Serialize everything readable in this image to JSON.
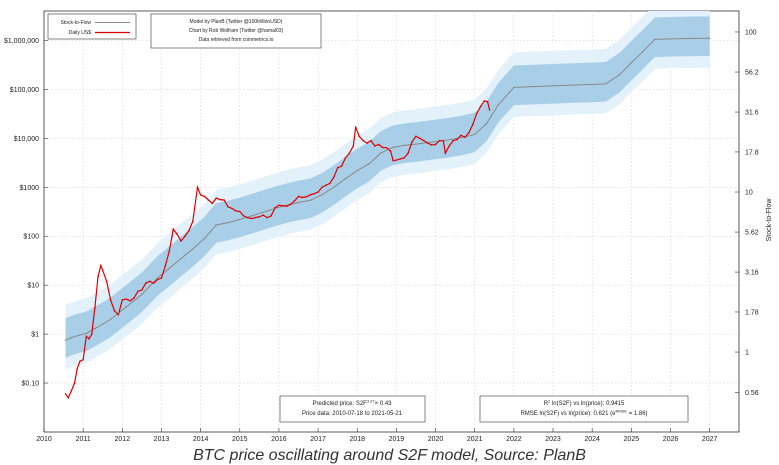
{
  "chart_data": {
    "type": "line",
    "title": "",
    "caption": "BTC price oscillating around S2F model, Source: PlanB",
    "xlabel": "",
    "ylabel": "",
    "y2label": "Stock-to-Flow",
    "x_ticks": [
      "2010",
      "2011",
      "2012",
      "2013",
      "2014",
      "2015",
      "2016",
      "2017",
      "2018",
      "2019",
      "2020",
      "2021",
      "2022",
      "2023",
      "2024",
      "2025",
      "2026",
      "2027"
    ],
    "y_ticks": [
      {
        "value": 0.1,
        "label": "$0.10"
      },
      {
        "value": 1,
        "label": "$1"
      },
      {
        "value": 10,
        "label": "$10"
      },
      {
        "value": 100,
        "label": "$100"
      },
      {
        "value": 1000,
        "label": "$1000"
      },
      {
        "value": 10000,
        "label": "$10,000"
      },
      {
        "value": 100000,
        "label": "$100,000"
      },
      {
        "value": 1000000,
        "label": "$1,000,000"
      }
    ],
    "y2_ticks": [
      {
        "value": 0.56,
        "label": "0.56"
      },
      {
        "value": 1,
        "label": "1"
      },
      {
        "value": 1.78,
        "label": "1.78"
      },
      {
        "value": 3.16,
        "label": "3.16"
      },
      {
        "value": 5.62,
        "label": "5.62"
      },
      {
        "value": 10,
        "label": "10"
      },
      {
        "value": 17.8,
        "label": "17.8"
      },
      {
        "value": 31.6,
        "label": "31.6"
      },
      {
        "value": 56.2,
        "label": "56.2"
      },
      {
        "value": 100,
        "label": "100"
      }
    ],
    "xlim": [
      2010.0,
      2027.75
    ],
    "ylim": [
      0.01,
      4000000
    ],
    "y_scale": "log",
    "grid": true,
    "legend_position": "top-left",
    "legend": [
      {
        "name": "Stock-to-Flow",
        "color": "#888888"
      },
      {
        "name": "Daily US$",
        "color": "#e00000"
      }
    ],
    "credits": [
      "Model by PlanB (Twitter @100trillionUSD)",
      "Chart by Rob Wolfram (Twitter @hamal03)",
      "Data retrieved from coinmetrics.io"
    ],
    "annotations": {
      "predicted_prefix": "Predicted price: S2F",
      "predicted_exp": "3.27",
      "predicted_suffix": "× 0.43",
      "price_data": "Price data: 2010-07-18 to 2021-05-21",
      "r2_prefix": "R",
      "r2_sup": "2",
      "r2_text": " ln(S2F) vs ln(price): 0.9415",
      "rmse_prefix": "RMSE ln(S2F) vs ln(price): 0.621 (e",
      "rmse_sup": "RMSE",
      "rmse_suffix": " = 1.86)"
    },
    "colors": {
      "s2f": "#888888",
      "price": "#e00000",
      "band_inner": "#a9cfe8",
      "band_outer": "#e3f1fb",
      "grid": "#cccccc"
    },
    "series": [
      {
        "name": "Stock-to-Flow",
        "x": [
          2010.55,
          2010.7,
          2010.9,
          2011.1,
          2011.3,
          2011.5,
          2011.7,
          2011.9,
          2012.1,
          2012.3,
          2012.5,
          2012.7,
          2012.9,
          2013.2,
          2013.5,
          2013.8,
          2014.1,
          2014.4,
          2014.7,
          2015.0,
          2015.3,
          2015.6,
          2015.9,
          2016.2,
          2016.5,
          2016.8,
          2017.1,
          2017.4,
          2017.7,
          2018.0,
          2018.3,
          2018.6,
          2018.9,
          2019.2,
          2019.5,
          2019.8,
          2020.1,
          2020.4,
          2020.7,
          2021.0,
          2021.3,
          2021.6,
          2022.0,
          2022.5,
          2023.0,
          2023.5,
          2024.0,
          2024.35,
          2024.7,
          2025.0,
          2025.3,
          2025.6,
          2026.0,
          2026.5,
          2027.0
        ],
        "y": [
          0.75,
          0.85,
          0.95,
          1.05,
          1.3,
          1.6,
          2.0,
          2.7,
          3.6,
          4.8,
          6.5,
          9.5,
          14,
          22,
          35,
          55,
          90,
          170,
          190,
          220,
          260,
          310,
          370,
          430,
          490,
          540,
          700,
          1000,
          1500,
          2200,
          3000,
          5000,
          6500,
          7200,
          7600,
          8200,
          8800,
          9500,
          10500,
          12000,
          20000,
          48000,
          110000,
          114000,
          118000,
          122000,
          126000,
          130000,
          200000,
          350000,
          600000,
          1050000,
          1080000,
          1100000,
          1110000
        ]
      },
      {
        "name": "Daily US$",
        "x": [
          2010.55,
          2010.62,
          2010.7,
          2010.78,
          2010.85,
          2010.92,
          2011.0,
          2011.08,
          2011.15,
          2011.22,
          2011.3,
          2011.38,
          2011.45,
          2011.5,
          2011.6,
          2011.7,
          2011.8,
          2011.9,
          2012.0,
          2012.1,
          2012.2,
          2012.3,
          2012.4,
          2012.5,
          2012.6,
          2012.7,
          2012.8,
          2012.9,
          2013.0,
          2013.1,
          2013.2,
          2013.27,
          2013.3,
          2013.4,
          2013.5,
          2013.6,
          2013.7,
          2013.8,
          2013.92,
          2014.0,
          2014.1,
          2014.2,
          2014.3,
          2014.4,
          2014.5,
          2014.6,
          2014.7,
          2014.8,
          2014.9,
          2015.0,
          2015.1,
          2015.2,
          2015.3,
          2015.4,
          2015.5,
          2015.6,
          2015.7,
          2015.8,
          2015.9,
          2016.0,
          2016.1,
          2016.2,
          2016.3,
          2016.4,
          2016.5,
          2016.6,
          2016.7,
          2016.8,
          2016.9,
          2017.0,
          2017.1,
          2017.2,
          2017.3,
          2017.4,
          2017.5,
          2017.6,
          2017.7,
          2017.8,
          2017.9,
          2017.96,
          2018.05,
          2018.15,
          2018.25,
          2018.35,
          2018.45,
          2018.55,
          2018.65,
          2018.75,
          2018.85,
          2018.92,
          2019.0,
          2019.1,
          2019.2,
          2019.3,
          2019.4,
          2019.5,
          2019.6,
          2019.7,
          2019.8,
          2019.9,
          2020.0,
          2020.1,
          2020.2,
          2020.25,
          2020.35,
          2020.45,
          2020.55,
          2020.65,
          2020.75,
          2020.85,
          2020.95,
          2021.05,
          2021.15,
          2021.25,
          2021.33,
          2021.38
        ],
        "y": [
          0.06,
          0.05,
          0.07,
          0.1,
          0.2,
          0.28,
          0.3,
          0.9,
          0.8,
          1.0,
          3.5,
          15,
          25,
          20,
          12,
          5,
          3,
          2.5,
          5,
          5.2,
          4.8,
          5.5,
          7.5,
          8,
          11,
          12,
          11,
          13,
          14,
          25,
          50,
          100,
          140,
          110,
          80,
          100,
          130,
          200,
          1000,
          700,
          650,
          550,
          470,
          600,
          560,
          550,
          400,
          370,
          330,
          320,
          260,
          240,
          230,
          240,
          250,
          270,
          240,
          260,
          380,
          430,
          420,
          410,
          450,
          530,
          650,
          620,
          640,
          700,
          740,
          800,
          1000,
          1100,
          1200,
          1600,
          2500,
          2700,
          4000,
          5000,
          7000,
          17000,
          11000,
          9000,
          8000,
          9000,
          7000,
          7500,
          6500,
          6400,
          5500,
          3500,
          3600,
          3800,
          4000,
          5000,
          8500,
          11000,
          10000,
          9000,
          8000,
          7300,
          7500,
          9000,
          8800,
          5000,
          7000,
          9000,
          9500,
          11500,
          10500,
          13000,
          19000,
          32000,
          45000,
          58000,
          56000,
          38000
        ]
      }
    ]
  }
}
